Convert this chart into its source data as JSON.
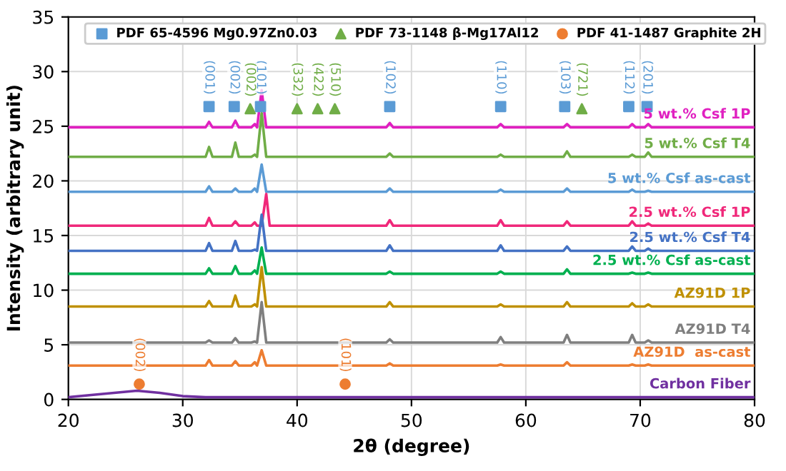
{
  "chart_data": {
    "type": "line",
    "xlabel": "2θ (degree)",
    "ylabel": "Intensity (arbitrary unit)",
    "xlim": [
      20,
      80
    ],
    "ylim": [
      0,
      35
    ],
    "xticks": [
      20,
      30,
      40,
      50,
      60,
      70,
      80
    ],
    "yticks": [
      0,
      5,
      10,
      15,
      20,
      25,
      30,
      35
    ],
    "grid": true,
    "legend": "top",
    "marker": "none",
    "line_style": "solid",
    "x": [
      20,
      32.0,
      32.3,
      32.6,
      34.3,
      34.6,
      34.9,
      36.0,
      36.3,
      36.5,
      36.9,
      37.3,
      37.6,
      47.8,
      48.1,
      48.4,
      57.5,
      57.8,
      58.1,
      63.3,
      63.6,
      63.9,
      69.0,
      69.3,
      69.6,
      70.4,
      70.7,
      71.0,
      80
    ],
    "series": [
      {
        "name": "5 wt.% Csf 1P",
        "color": "#e020c0",
        "values": [
          24.9,
          24.9,
          25.4,
          24.9,
          24.9,
          25.5,
          24.9,
          24.9,
          25.2,
          24.9,
          28.3,
          24.9,
          24.9,
          24.9,
          25.3,
          24.9,
          24.9,
          25.2,
          24.9,
          24.9,
          25.2,
          24.9,
          24.9,
          25.2,
          24.9,
          24.9,
          25.2,
          24.9,
          24.9
        ]
      },
      {
        "name": "5 wt.% Csf T4",
        "color": "#70ad47",
        "values": [
          22.2,
          22.2,
          23.1,
          22.2,
          22.2,
          23.5,
          22.2,
          22.2,
          22.4,
          22.2,
          26.2,
          22.2,
          22.2,
          22.2,
          22.5,
          22.2,
          22.2,
          22.4,
          22.2,
          22.2,
          22.7,
          22.2,
          22.2,
          22.4,
          22.2,
          22.2,
          22.6,
          22.2,
          22.2
        ]
      },
      {
        "name": "5 wt.% Csf as-cast",
        "color": "#5b9bd5",
        "values": [
          19.0,
          19.0,
          19.5,
          19.0,
          19.0,
          19.3,
          19.0,
          19.0,
          19.3,
          19.0,
          21.5,
          19.0,
          19.0,
          19.0,
          19.3,
          19.0,
          19.0,
          19.2,
          19.0,
          19.0,
          19.3,
          19.0,
          19.0,
          19.2,
          19.0,
          19.0,
          19.1,
          19.0,
          19.0
        ]
      },
      {
        "name": "2.5 wt.% Csf 1P",
        "color": "#f0287a",
        "values": [
          15.9,
          15.9,
          16.6,
          15.9,
          15.9,
          16.3,
          15.9,
          15.9,
          16.2,
          15.9,
          15.9,
          18.8,
          15.9,
          15.9,
          16.4,
          15.9,
          15.9,
          16.4,
          15.9,
          15.9,
          16.3,
          15.9,
          15.9,
          16.3,
          15.9,
          15.9,
          16.1,
          15.9,
          15.9
        ]
      },
      {
        "name": "2.5 wt.% Csf T4",
        "color": "#4472c4",
        "values": [
          13.6,
          13.6,
          14.3,
          13.6,
          13.6,
          14.5,
          13.6,
          13.6,
          13.7,
          13.6,
          16.9,
          13.6,
          13.6,
          13.6,
          14.1,
          13.6,
          13.6,
          14.1,
          13.6,
          13.6,
          14.0,
          13.6,
          13.6,
          14.0,
          13.6,
          13.6,
          13.8,
          13.6,
          13.6
        ]
      },
      {
        "name": "2.5 wt.% Csf as-cast",
        "color": "#00b050",
        "values": [
          11.5,
          11.5,
          12.0,
          11.5,
          11.5,
          12.2,
          11.5,
          11.5,
          11.8,
          11.5,
          13.9,
          11.5,
          11.5,
          11.5,
          11.7,
          11.5,
          11.5,
          11.7,
          11.5,
          11.5,
          11.9,
          11.5,
          11.5,
          11.6,
          11.5,
          11.5,
          11.6,
          11.5,
          11.5
        ]
      },
      {
        "name": "AZ91D 1P",
        "color": "#bf9000",
        "values": [
          8.5,
          8.5,
          9.0,
          8.5,
          8.5,
          9.5,
          8.5,
          8.5,
          8.7,
          8.5,
          12.1,
          8.5,
          8.5,
          8.5,
          8.9,
          8.5,
          8.5,
          8.7,
          8.5,
          8.5,
          8.9,
          8.5,
          8.5,
          8.8,
          8.5,
          8.5,
          8.7,
          8.5,
          8.5
        ]
      },
      {
        "name": "AZ91D T4",
        "color": "#7f7f7f",
        "values": [
          5.2,
          5.2,
          5.4,
          5.2,
          5.2,
          5.6,
          5.2,
          5.2,
          5.3,
          5.2,
          8.9,
          5.2,
          5.2,
          5.2,
          5.5,
          5.2,
          5.2,
          5.7,
          5.2,
          5.2,
          5.9,
          5.2,
          5.2,
          5.9,
          5.2,
          5.2,
          5.4,
          5.2,
          5.2
        ]
      },
      {
        "name": "AZ91D  as-cast",
        "color": "#ed7d31",
        "values": [
          3.1,
          3.1,
          3.6,
          3.1,
          3.1,
          3.5,
          3.1,
          3.1,
          3.4,
          3.1,
          4.5,
          3.1,
          3.1,
          3.1,
          3.3,
          3.1,
          3.1,
          3.2,
          3.1,
          3.1,
          3.4,
          3.1,
          3.1,
          3.2,
          3.1,
          3.1,
          3.2,
          3.1,
          3.1
        ]
      },
      {
        "name": "Carbon Fiber",
        "color": "#7030a0",
        "x": [
          20,
          22,
          24,
          26,
          28,
          30,
          32,
          40,
          80
        ],
        "values": [
          0.2,
          0.4,
          0.6,
          0.8,
          0.6,
          0.3,
          0.2,
          0.2,
          0.2
        ]
      },
      {
        "name": "PDF 65-4596 Mg0.97Zn0.03",
        "type": "scatter",
        "marker": "square",
        "color": "#5b9bd5",
        "x": [
          32.3,
          34.5,
          36.8,
          48.1,
          57.8,
          63.4,
          69.0,
          70.6
        ],
        "values": [
          26.8,
          26.8,
          26.8,
          26.8,
          26.8,
          26.8,
          26.8,
          26.8
        ]
      },
      {
        "name": "PDF 73-1148 β-Mg17Al12",
        "type": "scatter",
        "marker": "triangle",
        "color": "#70ad47",
        "x": [
          35.9,
          40.0,
          41.8,
          43.3,
          64.9
        ],
        "values": [
          26.6,
          26.6,
          26.6,
          26.6,
          26.6
        ]
      },
      {
        "name": "PDF 41-1487 Graphite 2H",
        "type": "scatter",
        "marker": "circle",
        "color": "#ed7d31",
        "x": [
          26.2,
          44.2
        ],
        "values": [
          1.4,
          1.4
        ]
      }
    ],
    "annotations": [
      {
        "text": "(001)",
        "x": 32.3,
        "y": 26.8
      },
      {
        "text": "(002)",
        "x": 34.5,
        "y": 26.8
      },
      {
        "text": "(101)",
        "x": 36.8,
        "y": 26.8
      },
      {
        "text": "(102)",
        "x": 48.1,
        "y": 26.8
      },
      {
        "text": "(110)",
        "x": 57.8,
        "y": 26.8
      },
      {
        "text": "(103)",
        "x": 63.4,
        "y": 26.8
      },
      {
        "text": "(112)",
        "x": 69.0,
        "y": 26.8
      },
      {
        "text": "(201)",
        "x": 70.6,
        "y": 26.8
      },
      {
        "text": "(002)",
        "x": 35.9,
        "y": 26.6
      },
      {
        "text": "(332)",
        "x": 40.0,
        "y": 26.6
      },
      {
        "text": "(422)",
        "x": 41.8,
        "y": 26.6
      },
      {
        "text": "(510)",
        "x": 43.3,
        "y": 26.6
      },
      {
        "text": "(721)",
        "x": 64.9,
        "y": 26.6
      },
      {
        "text": "(002)",
        "x": 26.2,
        "y": 1.4
      },
      {
        "text": "(101)",
        "x": 44.2,
        "y": 1.4
      }
    ]
  }
}
